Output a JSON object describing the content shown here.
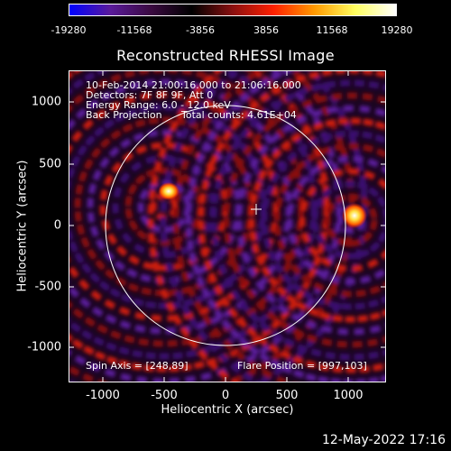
{
  "colorbar": {
    "ticks": [
      "-19280",
      "-11568",
      "-3856",
      "3856",
      "11568",
      "19280"
    ],
    "colors": [
      "#0000ff",
      "#5a1a9a",
      "#3a0a40",
      "#000000",
      "#8a1010",
      "#ff2000",
      "#ff9a00",
      "#ffff60",
      "#ffffff"
    ]
  },
  "title": "Reconstructed RHESSI Image",
  "annotations": {
    "time_range": "10-Feb-2014 21:00:16.000 to 21:06:16.000",
    "detectors": "Detectors: 7F 8F 9F, Att 0",
    "energy": "Energy Range: 6.0 - 12.0 keV",
    "method": "Back Projection",
    "counts": "Total counts: 4.61E+04",
    "spin_axis": "Spin Axis = [248,89]",
    "flare_position": "Flare Position = [997,103]"
  },
  "axes": {
    "xlabel": "Heliocentric X (arcsec)",
    "ylabel": "Heliocentric Y (arcsec)",
    "xticks": [
      "-1000",
      "-500",
      "0",
      "500",
      "1000"
    ],
    "yticks": [
      "1000",
      "500",
      "0",
      "-500",
      "-1000"
    ]
  },
  "footer": "12-May-2022 17:16"
}
